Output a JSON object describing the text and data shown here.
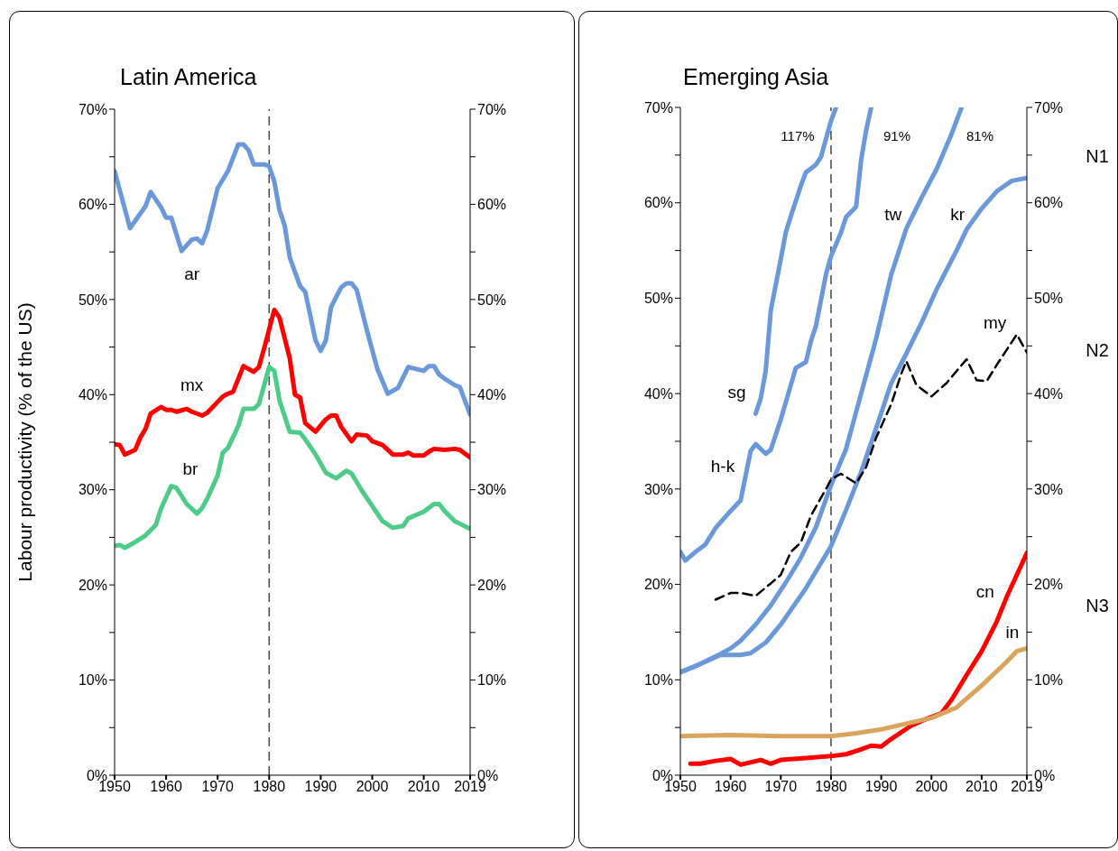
{
  "chart_data": [
    {
      "type": "line",
      "title": "Latin America",
      "ylabel": "Labour productivity (% of the US)",
      "xlim": [
        1950,
        2019
      ],
      "xticks": [
        1950,
        1960,
        1970,
        1980,
        1990,
        2000,
        2010,
        2019
      ],
      "ylim": [
        0,
        70
      ],
      "yticks": [
        {
          "value": 0,
          "label": "0%"
        },
        {
          "value": 5,
          "label": null
        },
        {
          "value": 10,
          "label": "10%"
        },
        {
          "value": 15,
          "label": null
        },
        {
          "value": 20,
          "label": "20%"
        },
        {
          "value": 25,
          "label": null
        },
        {
          "value": 30,
          "label": "30%"
        },
        {
          "value": 35,
          "label": null
        },
        {
          "value": 40,
          "label": "40%"
        },
        {
          "value": 45,
          "label": null
        },
        {
          "value": 50,
          "label": "50%"
        },
        {
          "value": 55,
          "label": null
        },
        {
          "value": 60,
          "label": "60%"
        },
        {
          "value": 65,
          "label": null
        },
        {
          "value": 70,
          "label": "70%"
        }
      ],
      "y2lim": [
        0,
        70
      ],
      "y2ticks": [
        {
          "value": 0,
          "label": "0%"
        },
        {
          "value": 5,
          "label": null
        },
        {
          "value": 10,
          "label": "10%"
        },
        {
          "value": 15,
          "label": null
        },
        {
          "value": 20,
          "label": "20%"
        },
        {
          "value": 25,
          "label": null
        },
        {
          "value": 30,
          "label": "30%"
        },
        {
          "value": 35,
          "label": null
        },
        {
          "value": 40,
          "label": "40%"
        },
        {
          "value": 45,
          "label": null
        },
        {
          "value": 50,
          "label": "50%"
        },
        {
          "value": 55,
          "label": null
        },
        {
          "value": 60,
          "label": "60%"
        },
        {
          "value": 65,
          "label": null
        },
        {
          "value": 70,
          "label": "70%"
        }
      ],
      "ref_lines": [
        {
          "axis": "x",
          "value": 1980,
          "line_style": "dashed",
          "color": "#444444"
        }
      ],
      "series": [
        {
          "name": "ar",
          "color": "#6a98d8",
          "x": [
            1950,
            1953,
            1956,
            1957,
            1959,
            1960,
            1961,
            1963,
            1965,
            1966,
            1967,
            1968,
            1970,
            1972,
            1974,
            1975,
            1976,
            1977,
            1979,
            1980,
            1981,
            1982,
            1983,
            1984,
            1986,
            1987,
            1989,
            1990,
            1991,
            1992,
            1994,
            1995,
            1996,
            1997,
            1999,
            2001,
            2003,
            2005,
            2007,
            2010,
            2011,
            2012,
            2013,
            2014,
            2016,
            2017,
            2019
          ],
          "values": [
            63.5,
            57.5,
            59.8,
            61.3,
            59.7,
            58.6,
            58.6,
            55.1,
            56.3,
            56.4,
            55.9,
            57.3,
            61.7,
            63.5,
            66.3,
            66.3,
            65.7,
            64.2,
            64.2,
            64.0,
            62.4,
            59.4,
            57.8,
            54.4,
            51.4,
            50.8,
            45.7,
            44.6,
            45.7,
            49.2,
            51.3,
            51.7,
            51.7,
            51.0,
            46.7,
            42.7,
            40.1,
            40.7,
            42.9,
            42.5,
            43.0,
            43.0,
            42.1,
            41.7,
            41.0,
            40.8,
            37.9
          ]
        },
        {
          "name": "mx",
          "color": "#ff0000",
          "x": [
            1950,
            1951,
            1952,
            1954,
            1955,
            1956,
            1957,
            1959,
            1960,
            1961,
            1962,
            1964,
            1965,
            1967,
            1968,
            1971,
            1972,
            1973,
            1975,
            1977,
            1978,
            1979,
            1981,
            1982,
            1984,
            1985,
            1986,
            1987,
            1989,
            1991,
            1992,
            1993,
            1994,
            1996,
            1997,
            1999,
            2000,
            2002,
            2004,
            2006,
            2007,
            2008,
            2010,
            2011,
            2012,
            2014,
            2016,
            2017,
            2019
          ],
          "values": [
            34.8,
            34.7,
            33.7,
            34.2,
            35.5,
            36.4,
            38.0,
            38.7,
            38.4,
            38.4,
            38.2,
            38.5,
            38.2,
            37.8,
            38.1,
            39.8,
            40.1,
            40.3,
            43.0,
            42.4,
            42.9,
            44.8,
            48.9,
            48.1,
            43.8,
            40.0,
            39.7,
            37.0,
            36.1,
            37.4,
            37.8,
            37.8,
            36.6,
            35.1,
            35.8,
            35.7,
            35.1,
            34.7,
            33.7,
            33.7,
            33.9,
            33.6,
            33.6,
            34.0,
            34.3,
            34.2,
            34.3,
            34.2,
            33.4
          ]
        },
        {
          "name": "br",
          "color": "#4dcb87",
          "x": [
            1950,
            1951,
            1952,
            1954,
            1956,
            1958,
            1959,
            1961,
            1962,
            1964,
            1966,
            1967,
            1968,
            1970,
            1971,
            1972,
            1974,
            1975,
            1977,
            1978,
            1980,
            1981,
            1982,
            1984,
            1986,
            1987,
            1989,
            1991,
            1993,
            1995,
            1996,
            1998,
            2000,
            2002,
            2004,
            2006,
            2007,
            2010,
            2012,
            2013,
            2014,
            2016,
            2019
          ],
          "values": [
            24.1,
            24.2,
            23.9,
            24.5,
            25.2,
            26.3,
            28.0,
            30.4,
            30.2,
            28.5,
            27.5,
            28.1,
            29.1,
            31.5,
            33.9,
            34.4,
            36.7,
            38.5,
            38.5,
            39.0,
            42.9,
            42.5,
            39.4,
            36.1,
            36.0,
            35.3,
            33.7,
            31.8,
            31.2,
            32.0,
            31.7,
            29.9,
            28.3,
            26.7,
            26.0,
            26.2,
            27.0,
            27.7,
            28.5,
            28.5,
            27.8,
            26.7,
            25.9
          ]
        }
      ]
    },
    {
      "type": "line",
      "title": "Emerging Asia",
      "xlim": [
        1950,
        2019
      ],
      "xticks": [
        1950,
        1960,
        1970,
        1980,
        1990,
        2000,
        2010,
        2019
      ],
      "ylim": [
        0,
        70
      ],
      "yticks": [
        {
          "value": 0,
          "label": "0%"
        },
        {
          "value": 5,
          "label": null
        },
        {
          "value": 10,
          "label": "10%"
        },
        {
          "value": 15,
          "label": null
        },
        {
          "value": 20,
          "label": "20%"
        },
        {
          "value": 25,
          "label": null
        },
        {
          "value": 30,
          "label": "30%"
        },
        {
          "value": 35,
          "label": null
        },
        {
          "value": 40,
          "label": "40%"
        },
        {
          "value": 45,
          "label": null
        },
        {
          "value": 50,
          "label": "50%"
        },
        {
          "value": 55,
          "label": null
        },
        {
          "value": 60,
          "label": "60%"
        },
        {
          "value": 65,
          "label": null
        },
        {
          "value": 70,
          "label": "70%"
        }
      ],
      "y2lim": [
        0,
        70
      ],
      "y2ticks": [
        {
          "value": 0,
          "label": "0%"
        },
        {
          "value": 5,
          "label": null
        },
        {
          "value": 10,
          "label": "10%"
        },
        {
          "value": 15,
          "label": null
        },
        {
          "value": 20,
          "label": "20%"
        },
        {
          "value": 25,
          "label": null
        },
        {
          "value": 30,
          "label": "30%"
        },
        {
          "value": 35,
          "label": null
        },
        {
          "value": 40,
          "label": "40%"
        },
        {
          "value": 45,
          "label": null
        },
        {
          "value": 50,
          "label": "50%"
        },
        {
          "value": 55,
          "label": null
        },
        {
          "value": 60,
          "label": "60%"
        },
        {
          "value": 65,
          "label": null
        },
        {
          "value": 70,
          "label": "70%"
        }
      ],
      "ref_lines": [
        {
          "axis": "x",
          "value": 1980,
          "line_style": "dashed",
          "color": "#444444"
        }
      ],
      "annotations": [
        "117%",
        "91%",
        "81%",
        "N1",
        "N2",
        "N3"
      ],
      "series": [
        {
          "name": "sg",
          "color": "#6a98d8",
          "x": [
            1965,
            1966,
            1967,
            1968,
            1970,
            1971,
            1972,
            1974,
            1975,
            1977,
            1978,
            1979,
            1980,
            1981
          ],
          "values": [
            37.9,
            39.5,
            42.4,
            48.7,
            54.1,
            56.9,
            58.6,
            61.8,
            63.2,
            64.0,
            64.8,
            66.7,
            68.6,
            70
          ]
        },
        {
          "name": "h-k",
          "color": "#6a98d8",
          "x": [
            1950,
            1951,
            1953,
            1955,
            1957,
            1960,
            1962,
            1964,
            1965,
            1967,
            1968,
            1970,
            1971,
            1973,
            1975,
            1976,
            1977,
            1979,
            1980,
            1982,
            1983,
            1985,
            1986,
            1987,
            1988
          ],
          "values": [
            23.4,
            22.5,
            23.4,
            24.2,
            25.9,
            27.7,
            28.8,
            34.0,
            34.7,
            33.7,
            34.1,
            37.3,
            39.1,
            42.7,
            43.3,
            45.5,
            47.1,
            52.5,
            54.4,
            56.9,
            58.5,
            59.6,
            64.5,
            67.6,
            70
          ]
        },
        {
          "name": "tw",
          "color": "#6a98d8",
          "x": [
            1950,
            1953,
            1956,
            1958,
            1960,
            1962,
            1965,
            1968,
            1971,
            1974,
            1977,
            1980,
            1983,
            1986,
            1989,
            1992,
            1995,
            1998,
            2001,
            2004,
            2006
          ],
          "values": [
            10.8,
            11.4,
            12.2,
            12.7,
            13.3,
            14.1,
            15.8,
            17.8,
            20.2,
            22.8,
            26.0,
            30.4,
            34.2,
            40.0,
            45.8,
            52.5,
            57.3,
            60.5,
            63.5,
            67.2,
            70
          ]
        },
        {
          "name": "kr",
          "color": "#6a98d8",
          "x": [
            1950,
            1955,
            1958,
            1962,
            1964,
            1967,
            1970,
            1975,
            1980,
            1983,
            1986,
            1989,
            1992,
            1995,
            1998,
            2001,
            2005,
            2007,
            2010,
            2013,
            2016,
            2019
          ],
          "values": [
            10.8,
            11.9,
            12.6,
            12.6,
            12.8,
            13.9,
            15.8,
            19.6,
            24.0,
            27.8,
            31.8,
            36.4,
            41.1,
            44.2,
            47.4,
            50.9,
            55.0,
            57.2,
            59.4,
            61.2,
            62.3,
            62.6
          ]
        },
        {
          "name": "my",
          "color": "#000000",
          "line_style": "dashed",
          "x": [
            1957,
            1960,
            1962,
            1965,
            1968,
            1970,
            1972,
            1974,
            1976,
            1979,
            1980,
            1982,
            1985,
            1987,
            1989,
            1992,
            1994,
            1995,
            1997,
            2000,
            2003,
            2007,
            2009,
            2011,
            2013,
            2017,
            2019
          ],
          "values": [
            18.4,
            19.1,
            19.1,
            18.8,
            20.1,
            21.0,
            23.4,
            24.4,
            27.2,
            30.0,
            31.0,
            31.6,
            30.6,
            32.3,
            35.4,
            38.9,
            42.1,
            43.4,
            40.9,
            39.7,
            41.1,
            43.6,
            41.4,
            41.3,
            43.0,
            46.2,
            44.3
          ]
        },
        {
          "name": "cn",
          "color": "#ff0000",
          "x": [
            1952,
            1954,
            1957,
            1960,
            1962,
            1966,
            1968,
            1970,
            1975,
            1980,
            1983,
            1986,
            1988,
            1990,
            1992,
            1996,
            1999,
            2002,
            2004,
            2007,
            2010,
            2013,
            2015,
            2019
          ],
          "values": [
            1.2,
            1.2,
            1.5,
            1.7,
            1.1,
            1.6,
            1.2,
            1.6,
            1.8,
            2.0,
            2.2,
            2.7,
            3.1,
            3.0,
            3.8,
            5.2,
            5.9,
            6.5,
            7.9,
            10.5,
            13.0,
            16.1,
            18.7,
            23.3
          ]
        },
        {
          "name": "in",
          "color": "#d9a45e",
          "x": [
            1950,
            1960,
            1970,
            1980,
            1985,
            1990,
            1995,
            2000,
            2005,
            2010,
            2015,
            2017,
            2019
          ],
          "values": [
            4.1,
            4.2,
            4.1,
            4.1,
            4.4,
            4.8,
            5.4,
            6.0,
            7.1,
            9.4,
            11.9,
            13.0,
            13.3
          ]
        }
      ]
    }
  ]
}
